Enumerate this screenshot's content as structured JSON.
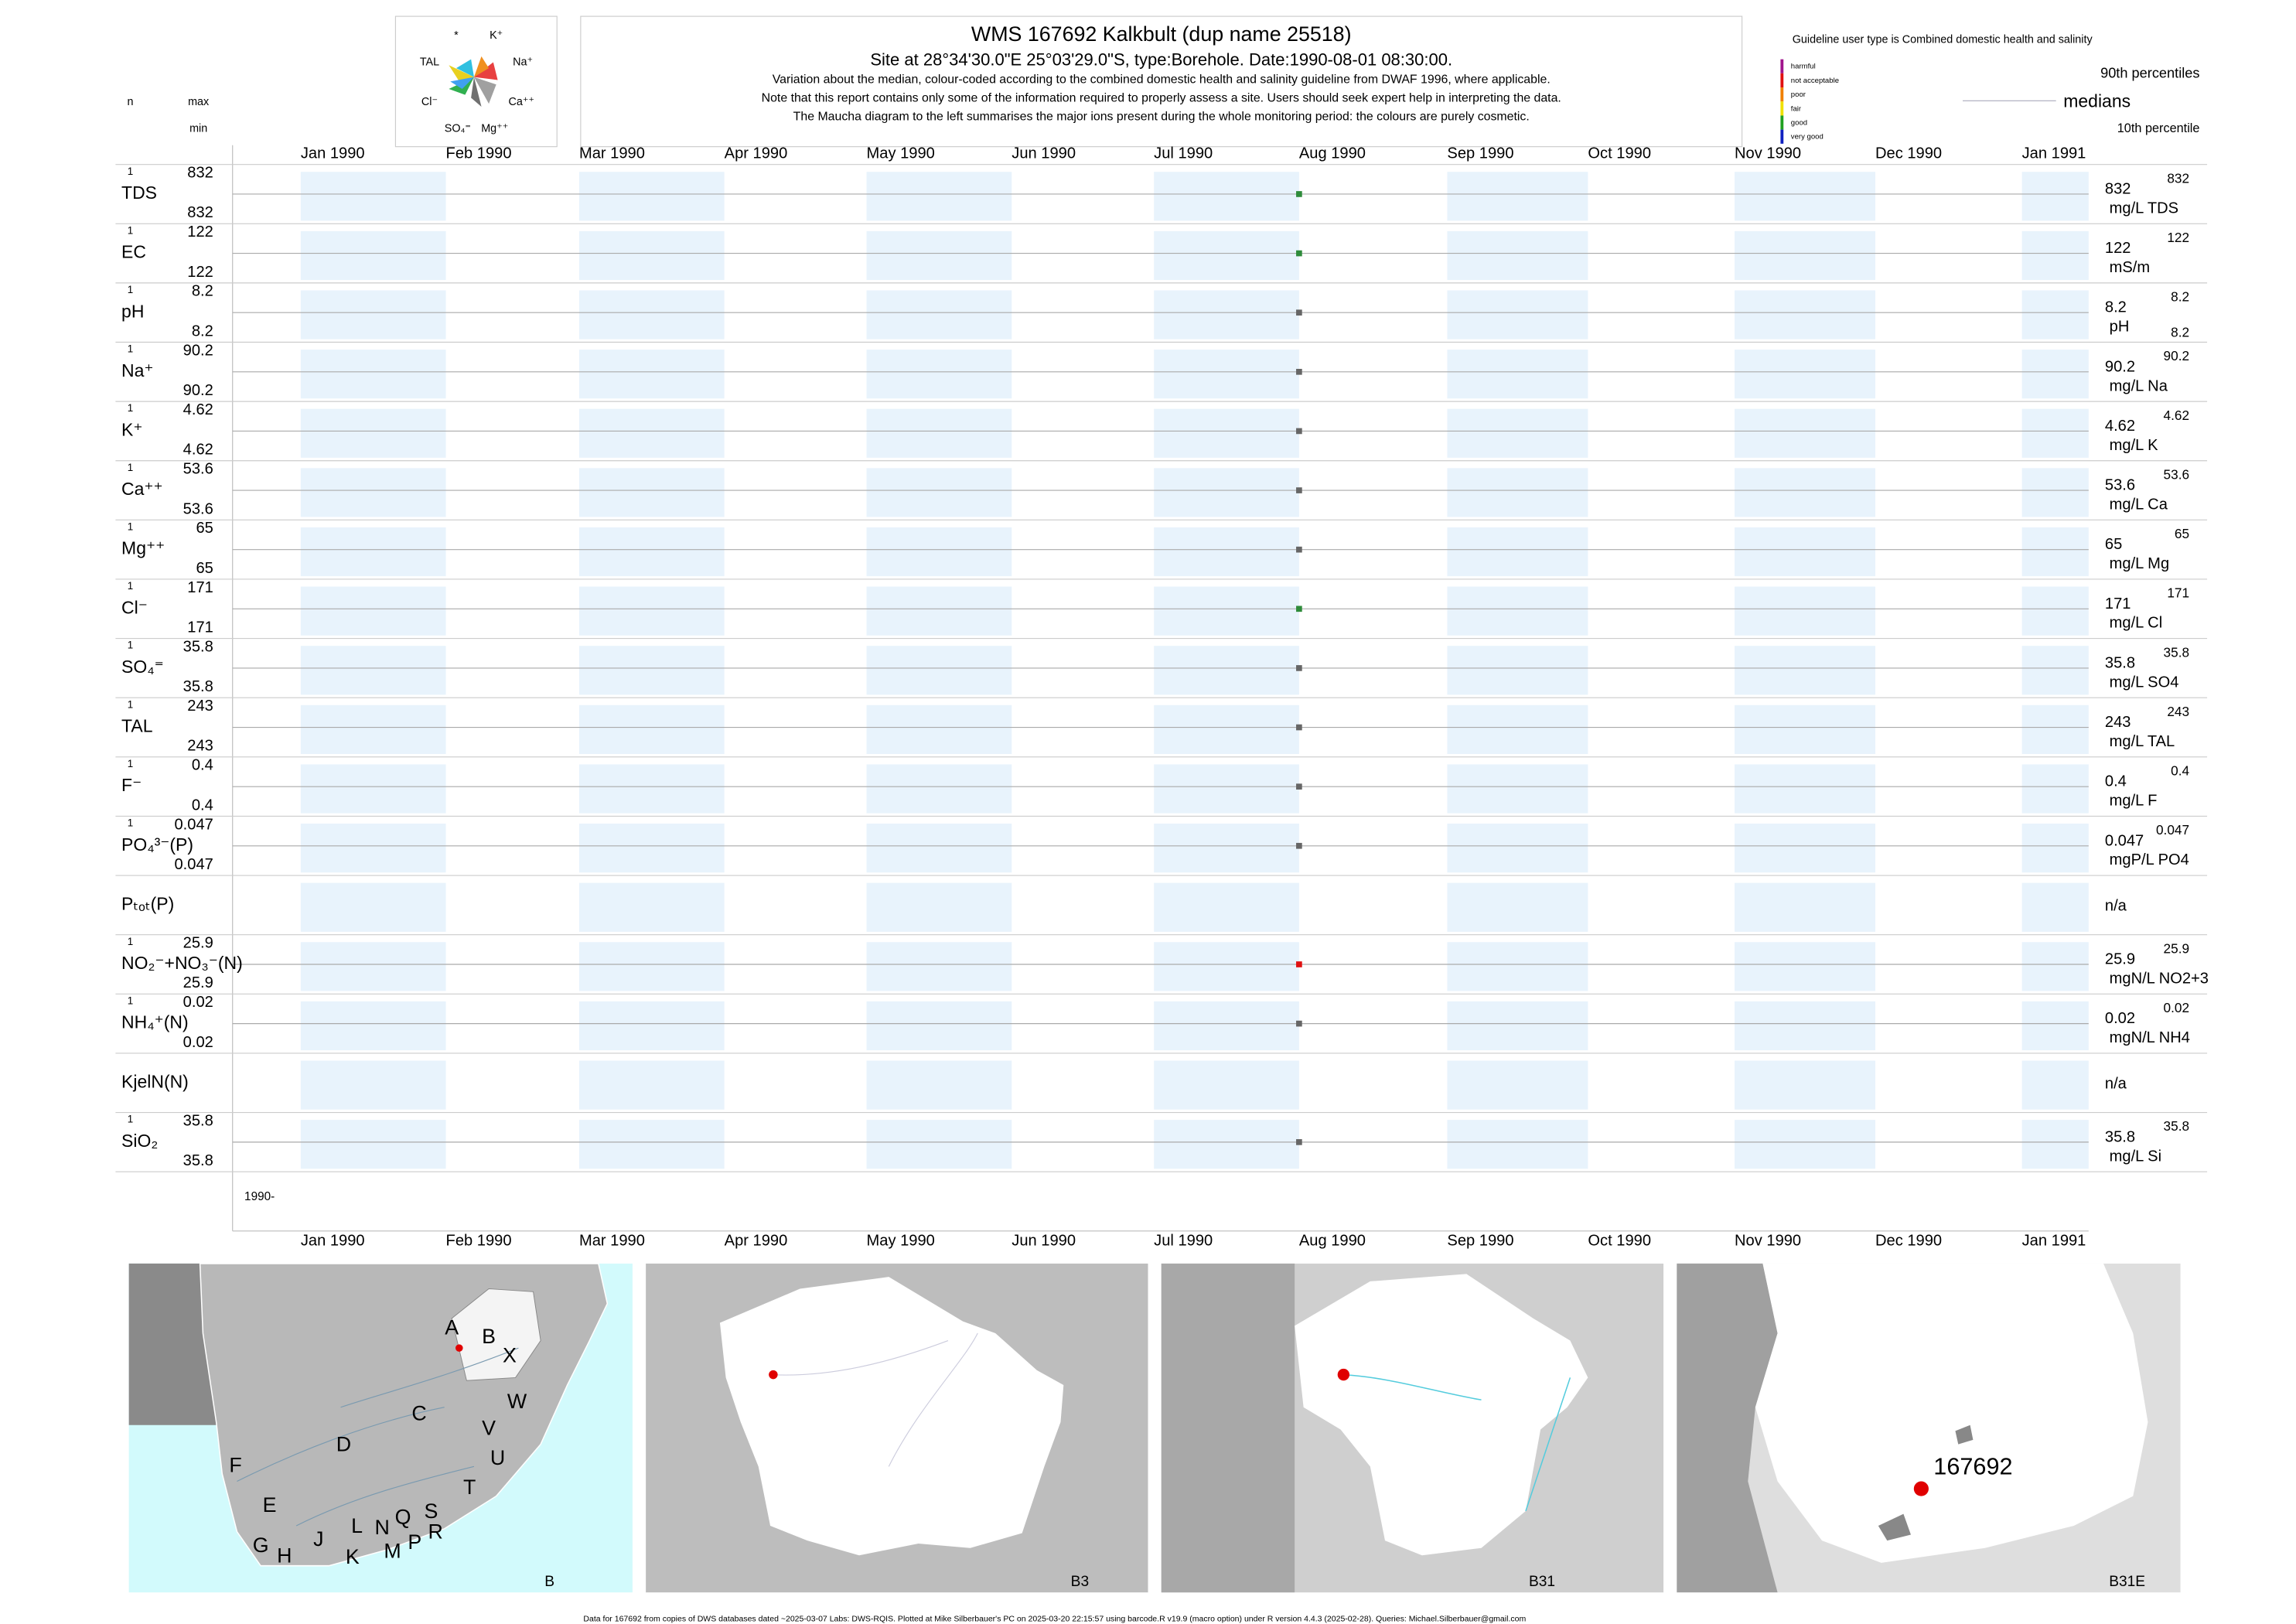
{
  "header": {
    "title": "WMS 167692  Kalkbult (dup name 25518)",
    "subtitle": "Site at 28°34'30.0\"E 25°03'29.0\"S, type:Borehole. Date:1990-08-01 08:30:00.",
    "notes": [
      "Variation about the median,  colour-coded according to the combined domestic health and salinity guideline from DWAF 1996, where applicable.",
      "Note that this report contains only some of the information required to properly assess a site. Users should seek expert help in interpreting the data.",
      "The Maucha diagram to the left summarises the major ions present during the whole monitoring period: the colours are purely cosmetic."
    ]
  },
  "maucha": {
    "labels": [
      "*",
      "K⁺",
      "TAL",
      "Na⁺",
      "Cl⁻",
      "Ca⁺⁺",
      "SO₄⁼",
      "Mg⁺⁺"
    ]
  },
  "legend": {
    "guideline": "Guideline user type is Combined domestic health and salinity",
    "classes": [
      {
        "name": "harmful",
        "color": "#a0148c"
      },
      {
        "name": "not acceptable",
        "color": "#e01010"
      },
      {
        "name": "poor",
        "color": "#f08000"
      },
      {
        "name": "fair",
        "color": "#f0e000"
      },
      {
        "name": "good",
        "color": "#20a020"
      },
      {
        "name": "very good",
        "color": "#1020c0"
      }
    ],
    "p90": "90th percentiles",
    "median": "medians",
    "p10": "10th percentile"
  },
  "columns": {
    "n": "n",
    "max": "max",
    "min": "min"
  },
  "months": [
    "Jan 1990",
    "Feb 1990",
    "Mar 1990",
    "Apr 1990",
    "May 1990",
    "Jun 1990",
    "Jul 1990",
    "Aug 1990",
    "Sep 1990",
    "Oct 1990",
    "Nov 1990",
    "Dec 1990",
    "Jan 1991"
  ],
  "year_label": "1990-",
  "rows": [
    {
      "label": "TDS",
      "n": 1,
      "max": 832,
      "min": 832,
      "median": 832,
      "p90": 832,
      "unit": "mg/L TDS",
      "color": "#2e8b3a"
    },
    {
      "label": "EC",
      "n": 1,
      "max": 122,
      "min": 122,
      "median": 122,
      "p90": 122,
      "unit": "mS/m",
      "color": "#2e8b3a"
    },
    {
      "label": "pH",
      "n": 1,
      "max": 8.2,
      "min": 8.2,
      "median": 8.2,
      "p90": 8.2,
      "p10": 8.2,
      "unit": "pH",
      "color": "#666666"
    },
    {
      "label": "Na⁺",
      "n": 1,
      "max": 90.2,
      "min": 90.2,
      "median": 90.2,
      "p90": 90.2,
      "unit": "mg/L Na",
      "color": "#666666"
    },
    {
      "label": "K⁺",
      "n": 1,
      "max": 4.62,
      "min": 4.62,
      "median": 4.62,
      "p90": 4.62,
      "unit": "mg/L K",
      "color": "#666666"
    },
    {
      "label": "Ca⁺⁺",
      "n": 1,
      "max": 53.6,
      "min": 53.6,
      "median": 53.6,
      "p90": 53.6,
      "unit": "mg/L Ca",
      "color": "#666666"
    },
    {
      "label": "Mg⁺⁺",
      "n": 1,
      "max": 65,
      "min": 65,
      "median": 65,
      "p90": 65,
      "unit": "mg/L Mg",
      "color": "#666666"
    },
    {
      "label": "Cl⁻",
      "n": 1,
      "max": 171,
      "min": 171,
      "median": 171,
      "p90": 171,
      "unit": "mg/L Cl",
      "color": "#2e8b3a"
    },
    {
      "label": "SO₄⁼",
      "n": 1,
      "max": 35.8,
      "min": 35.8,
      "median": 35.8,
      "p90": 35.8,
      "unit": "mg/L SO4",
      "color": "#666666"
    },
    {
      "label": "TAL",
      "n": 1,
      "max": 243,
      "min": 243,
      "median": 243,
      "p90": 243,
      "unit": "mg/L TAL",
      "color": "#666666"
    },
    {
      "label": "F⁻",
      "n": 1,
      "max": 0.4,
      "min": 0.4,
      "median": 0.4,
      "p90": 0.4,
      "unit": "mg/L F",
      "color": "#666666"
    },
    {
      "label": "PO₄³⁻(P)",
      "n": 1,
      "max": 0.047,
      "min": 0.047,
      "median": 0.047,
      "p90": 0.047,
      "unit": "mgP/L PO4",
      "color": "#666666"
    },
    {
      "label": "Pₜₒₜ(P)",
      "median": "n/a"
    },
    {
      "label": "NO₂⁻+NO₃⁻(N)",
      "n": 1,
      "max": 25.9,
      "min": 25.9,
      "median": 25.9,
      "p90": 25.9,
      "unit": "mgN/L NO2+3",
      "color": "#e01010"
    },
    {
      "label": "NH₄⁺(N)",
      "n": 1,
      "max": 0.02,
      "min": 0.02,
      "median": 0.02,
      "p90": 0.02,
      "unit": "mgN/L NH4",
      "color": "#666666"
    },
    {
      "label": "KjelN(N)",
      "median": "n/a"
    },
    {
      "label": "SiO₂",
      "n": 1,
      "max": 35.8,
      "min": 35.8,
      "median": 35.8,
      "p90": 35.8,
      "unit": "mg/L Si",
      "color": "#666666"
    }
  ],
  "maps": [
    {
      "name": "B",
      "labels": [
        "A",
        "B",
        "X",
        "W",
        "C",
        "V",
        "D",
        "U",
        "F",
        "T",
        "E",
        "S",
        "J",
        "L",
        "N",
        "Q",
        "R",
        "G",
        "H",
        "K",
        "M",
        "P"
      ]
    },
    {
      "name": "B3"
    },
    {
      "name": "B31"
    },
    {
      "name": "B31E",
      "site": "167692"
    }
  ],
  "footer": "Data for 167692 from copies of DWS databases dated ~2025-03-07 Labs: DWS-RQIS. Plotted at Mike Silberbauer's PC on 2025-03-20 22:15:57 using barcode.R v19.9 (macro option) under R version 4.4.3 (2025-02-28). Queries: Michael.Silberbauer@gmail.com"
}
